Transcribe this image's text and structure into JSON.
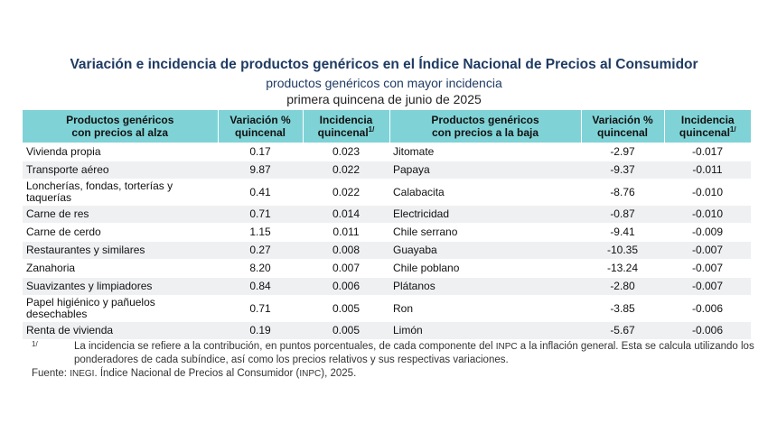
{
  "title": "Variación e incidencia de productos genéricos en el Índice Nacional de Precios al Consumidor",
  "subtitle": "productos genéricos con mayor incidencia",
  "period": "primera quincena de junio de 2025",
  "headers": {
    "up_product_1": "Productos genéricos",
    "up_product_2": "con precios al alza",
    "up_var_1": "Variación %",
    "up_var_2": "quincenal",
    "up_inc_1": "Incidencia",
    "up_inc_2": "quincenal",
    "down_product_1": "Productos genéricos",
    "down_product_2": "con precios a la baja",
    "down_var_1": "Variación %",
    "down_var_2": "quincenal",
    "down_inc_1": "Incidencia",
    "down_inc_2": "quincenal",
    "note_mark": "1/"
  },
  "rows": [
    {
      "up_name": "Vivienda propia",
      "up_var": "0.17",
      "up_inc": "0.023",
      "down_name": "Jitomate",
      "down_var": "-2.97",
      "down_inc": "-0.017"
    },
    {
      "up_name": "Transporte aéreo",
      "up_var": "9.87",
      "up_inc": "0.022",
      "down_name": "Papaya",
      "down_var": "-9.37",
      "down_inc": "-0.011"
    },
    {
      "up_name": "Loncherías, fondas, torterías y taquerías",
      "up_var": "0.41",
      "up_inc": "0.022",
      "down_name": "Calabacita",
      "down_var": "-8.76",
      "down_inc": "-0.010"
    },
    {
      "up_name": "Carne de res",
      "up_var": "0.71",
      "up_inc": "0.014",
      "down_name": "Electricidad",
      "down_var": "-0.87",
      "down_inc": "-0.010"
    },
    {
      "up_name": "Carne de cerdo",
      "up_var": "1.15",
      "up_inc": "0.011",
      "down_name": "Chile serrano",
      "down_var": "-9.41",
      "down_inc": "-0.009"
    },
    {
      "up_name": "Restaurantes y similares",
      "up_var": "0.27",
      "up_inc": "0.008",
      "down_name": "Guayaba",
      "down_var": "-10.35",
      "down_inc": "-0.007"
    },
    {
      "up_name": "Zanahoria",
      "up_var": "8.20",
      "up_inc": "0.007",
      "down_name": "Chile poblano",
      "down_var": "-13.24",
      "down_inc": "-0.007"
    },
    {
      "up_name": "Suavizantes y limpiadores",
      "up_var": "0.84",
      "up_inc": "0.006",
      "down_name": "Plátanos",
      "down_var": "-2.80",
      "down_inc": "-0.007"
    },
    {
      "up_name": "Papel higiénico y pañuelos desechables",
      "up_var": "0.71",
      "up_inc": "0.005",
      "down_name": "Ron",
      "down_var": "-3.85",
      "down_inc": "-0.006"
    },
    {
      "up_name": "Renta de vivienda",
      "up_var": "0.19",
      "up_inc": "0.005",
      "down_name": "Limón",
      "down_var": "-5.67",
      "down_inc": "-0.006"
    }
  ],
  "footnote": {
    "mark": "1/",
    "text_a": "La incidencia se refiere a la contribución, en puntos porcentuales, de cada componente del ",
    "inpc": "INPC",
    "text_b": " a la inflación general. Esta se calcula utilizando los ponderadores de cada subíndice, así como los precios relativos y sus respectivas variaciones."
  },
  "source": {
    "label": "Fuente: ",
    "inegi": "INEGI",
    "text_a": ". Índice Nacional de Precios al Consumidor (",
    "inpc": "INPC",
    "text_b": "), 2025."
  }
}
